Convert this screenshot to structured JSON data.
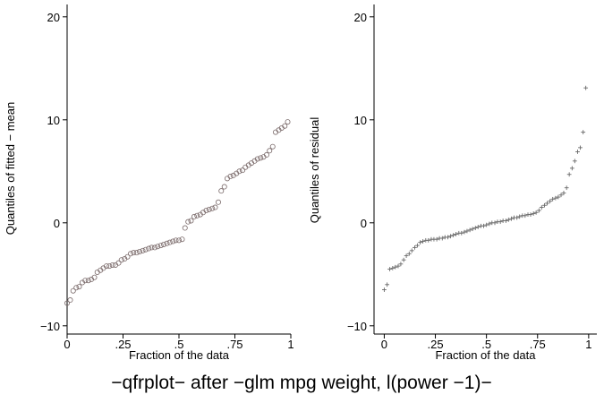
{
  "caption": "−qfrplot− after −glm mpg weight, l(power −1)−",
  "chart_data": [
    {
      "type": "scatter",
      "marker": "circle",
      "xlabel": "Fraction of the data",
      "ylabel": "Quantiles of fitted − mean",
      "xlim": [
        0,
        1
      ],
      "ylim": [
        -10,
        20
      ],
      "xticks": [
        {
          "value": 0,
          "label": "0"
        },
        {
          "value": 0.25,
          "label": ".25"
        },
        {
          "value": 0.5,
          "label": ".5"
        },
        {
          "value": 0.75,
          "label": ".75"
        },
        {
          "value": 1,
          "label": "1"
        }
      ],
      "yticks": [
        {
          "value": -10,
          "label": "−10"
        },
        {
          "value": 0,
          "label": "0"
        },
        {
          "value": 10,
          "label": "10"
        },
        {
          "value": 20,
          "label": "20"
        }
      ],
      "grid": false,
      "colors": {
        "marker": "#7a6a6a",
        "axis": "#000000"
      },
      "points": [
        [
          0.0,
          -7.8
        ],
        [
          0.014,
          -7.5
        ],
        [
          0.027,
          -6.6
        ],
        [
          0.041,
          -6.3
        ],
        [
          0.054,
          -6.2
        ],
        [
          0.068,
          -5.8
        ],
        [
          0.081,
          -5.6
        ],
        [
          0.095,
          -5.6
        ],
        [
          0.108,
          -5.5
        ],
        [
          0.122,
          -5.3
        ],
        [
          0.135,
          -4.8
        ],
        [
          0.149,
          -4.6
        ],
        [
          0.162,
          -4.4
        ],
        [
          0.176,
          -4.2
        ],
        [
          0.189,
          -4.2
        ],
        [
          0.203,
          -4.1
        ],
        [
          0.216,
          -4.1
        ],
        [
          0.23,
          -3.9
        ],
        [
          0.243,
          -3.6
        ],
        [
          0.257,
          -3.5
        ],
        [
          0.27,
          -3.3
        ],
        [
          0.284,
          -3.0
        ],
        [
          0.297,
          -2.9
        ],
        [
          0.311,
          -2.9
        ],
        [
          0.324,
          -2.8
        ],
        [
          0.338,
          -2.7
        ],
        [
          0.351,
          -2.6
        ],
        [
          0.365,
          -2.5
        ],
        [
          0.378,
          -2.4
        ],
        [
          0.392,
          -2.4
        ],
        [
          0.405,
          -2.3
        ],
        [
          0.419,
          -2.2
        ],
        [
          0.432,
          -2.1
        ],
        [
          0.446,
          -2.0
        ],
        [
          0.459,
          -1.9
        ],
        [
          0.473,
          -1.8
        ],
        [
          0.486,
          -1.7
        ],
        [
          0.5,
          -1.7
        ],
        [
          0.514,
          -1.6
        ],
        [
          0.527,
          -0.5
        ],
        [
          0.541,
          0.1
        ],
        [
          0.554,
          0.2
        ],
        [
          0.568,
          0.6
        ],
        [
          0.581,
          0.7
        ],
        [
          0.595,
          0.8
        ],
        [
          0.608,
          1.0
        ],
        [
          0.622,
          1.2
        ],
        [
          0.635,
          1.3
        ],
        [
          0.649,
          1.4
        ],
        [
          0.662,
          1.5
        ],
        [
          0.676,
          2.0
        ],
        [
          0.689,
          3.1
        ],
        [
          0.703,
          3.5
        ],
        [
          0.716,
          4.3
        ],
        [
          0.73,
          4.5
        ],
        [
          0.743,
          4.6
        ],
        [
          0.757,
          4.8
        ],
        [
          0.77,
          5.0
        ],
        [
          0.784,
          5.1
        ],
        [
          0.797,
          5.4
        ],
        [
          0.811,
          5.6
        ],
        [
          0.824,
          5.8
        ],
        [
          0.838,
          6.0
        ],
        [
          0.851,
          6.2
        ],
        [
          0.865,
          6.3
        ],
        [
          0.878,
          6.4
        ],
        [
          0.892,
          6.6
        ],
        [
          0.905,
          7.0
        ],
        [
          0.919,
          7.4
        ],
        [
          0.932,
          8.8
        ],
        [
          0.946,
          9.0
        ],
        [
          0.959,
          9.2
        ],
        [
          0.973,
          9.4
        ],
        [
          0.986,
          9.8
        ]
      ]
    },
    {
      "type": "scatter",
      "marker": "plus",
      "xlabel": "Fraction of the data",
      "ylabel": "Quantiles of residual",
      "xlim": [
        0,
        1
      ],
      "ylim": [
        -10,
        20
      ],
      "xticks": [
        {
          "value": 0,
          "label": "0"
        },
        {
          "value": 0.25,
          "label": ".25"
        },
        {
          "value": 0.5,
          "label": ".5"
        },
        {
          "value": 0.75,
          "label": ".75"
        },
        {
          "value": 1,
          "label": "1"
        }
      ],
      "yticks": [
        {
          "value": -10,
          "label": "−10"
        },
        {
          "value": 0,
          "label": "0"
        },
        {
          "value": 10,
          "label": "10"
        },
        {
          "value": 20,
          "label": "20"
        }
      ],
      "grid": false,
      "colors": {
        "marker": "#6a6a6a",
        "axis": "#000000"
      },
      "points": [
        [
          0.0,
          -6.5
        ],
        [
          0.014,
          -6.0
        ],
        [
          0.027,
          -4.5
        ],
        [
          0.041,
          -4.4
        ],
        [
          0.054,
          -4.3
        ],
        [
          0.068,
          -4.2
        ],
        [
          0.081,
          -4.0
        ],
        [
          0.095,
          -3.6
        ],
        [
          0.108,
          -3.2
        ],
        [
          0.122,
          -3.0
        ],
        [
          0.135,
          -2.7
        ],
        [
          0.149,
          -2.4
        ],
        [
          0.162,
          -2.2
        ],
        [
          0.176,
          -1.9
        ],
        [
          0.189,
          -1.8
        ],
        [
          0.203,
          -1.7
        ],
        [
          0.216,
          -1.7
        ],
        [
          0.23,
          -1.6
        ],
        [
          0.243,
          -1.6
        ],
        [
          0.257,
          -1.6
        ],
        [
          0.27,
          -1.5
        ],
        [
          0.284,
          -1.5
        ],
        [
          0.297,
          -1.4
        ],
        [
          0.311,
          -1.4
        ],
        [
          0.324,
          -1.3
        ],
        [
          0.338,
          -1.2
        ],
        [
          0.351,
          -1.1
        ],
        [
          0.365,
          -1.0
        ],
        [
          0.378,
          -1.0
        ],
        [
          0.392,
          -0.9
        ],
        [
          0.405,
          -0.8
        ],
        [
          0.419,
          -0.7
        ],
        [
          0.432,
          -0.6
        ],
        [
          0.446,
          -0.5
        ],
        [
          0.459,
          -0.4
        ],
        [
          0.473,
          -0.3
        ],
        [
          0.486,
          -0.3
        ],
        [
          0.5,
          -0.2
        ],
        [
          0.514,
          -0.1
        ],
        [
          0.527,
          0.0
        ],
        [
          0.541,
          0.0
        ],
        [
          0.554,
          0.1
        ],
        [
          0.568,
          0.1
        ],
        [
          0.581,
          0.2
        ],
        [
          0.595,
          0.2
        ],
        [
          0.608,
          0.3
        ],
        [
          0.622,
          0.4
        ],
        [
          0.635,
          0.5
        ],
        [
          0.649,
          0.5
        ],
        [
          0.662,
          0.6
        ],
        [
          0.676,
          0.7
        ],
        [
          0.689,
          0.7
        ],
        [
          0.703,
          0.8
        ],
        [
          0.716,
          0.8
        ],
        [
          0.73,
          0.9
        ],
        [
          0.743,
          1.0
        ],
        [
          0.757,
          1.2
        ],
        [
          0.77,
          1.5
        ],
        [
          0.784,
          1.7
        ],
        [
          0.797,
          1.9
        ],
        [
          0.811,
          2.1
        ],
        [
          0.824,
          2.3
        ],
        [
          0.838,
          2.4
        ],
        [
          0.851,
          2.5
        ],
        [
          0.865,
          2.7
        ],
        [
          0.878,
          2.9
        ],
        [
          0.892,
          3.4
        ],
        [
          0.905,
          4.7
        ],
        [
          0.919,
          5.3
        ],
        [
          0.932,
          6.0
        ],
        [
          0.946,
          6.9
        ],
        [
          0.959,
          7.3
        ],
        [
          0.973,
          8.8
        ],
        [
          0.986,
          13.1
        ]
      ]
    }
  ]
}
